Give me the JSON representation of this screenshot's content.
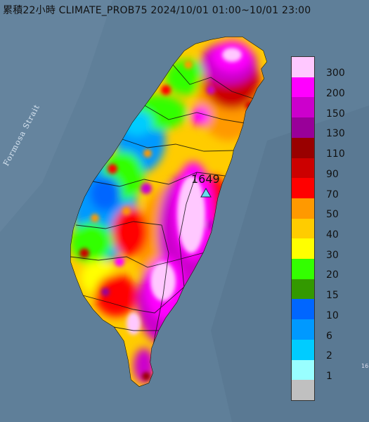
{
  "title": "累積22小時 CLIMATE_PROB75 2024/10/01 01:00~10/01 23:00",
  "sea_label": "Formosa Strait",
  "peak_label": "1649",
  "corner_label": "16",
  "legend": {
    "levels": [
      {
        "label": "300",
        "color": "#ffc8ff"
      },
      {
        "label": "200",
        "color": "#ff00ff"
      },
      {
        "label": "150",
        "color": "#cc00cc"
      },
      {
        "label": "130",
        "color": "#990099"
      },
      {
        "label": "110",
        "color": "#990000"
      },
      {
        "label": "90",
        "color": "#cc0000"
      },
      {
        "label": "70",
        "color": "#ff0000"
      },
      {
        "label": "50",
        "color": "#ff9900"
      },
      {
        "label": "40",
        "color": "#ffcc00"
      },
      {
        "label": "30",
        "color": "#ffff00"
      },
      {
        "label": "20",
        "color": "#33ff00"
      },
      {
        "label": "15",
        "color": "#339900"
      },
      {
        "label": "10",
        "color": "#0066ff"
      },
      {
        "label": "6",
        "color": "#0099ff"
      },
      {
        "label": "2",
        "color": "#00ccff"
      },
      {
        "label": "1",
        "color": "#99ffff"
      },
      {
        "label": "",
        "color": "#c0c0c0"
      }
    ]
  },
  "colors": {
    "sea": "#5f7f99",
    "land_base": "#ffcc00",
    "marker": "#66ddee"
  },
  "icons": {
    "marker": "triangle-marker-icon"
  }
}
